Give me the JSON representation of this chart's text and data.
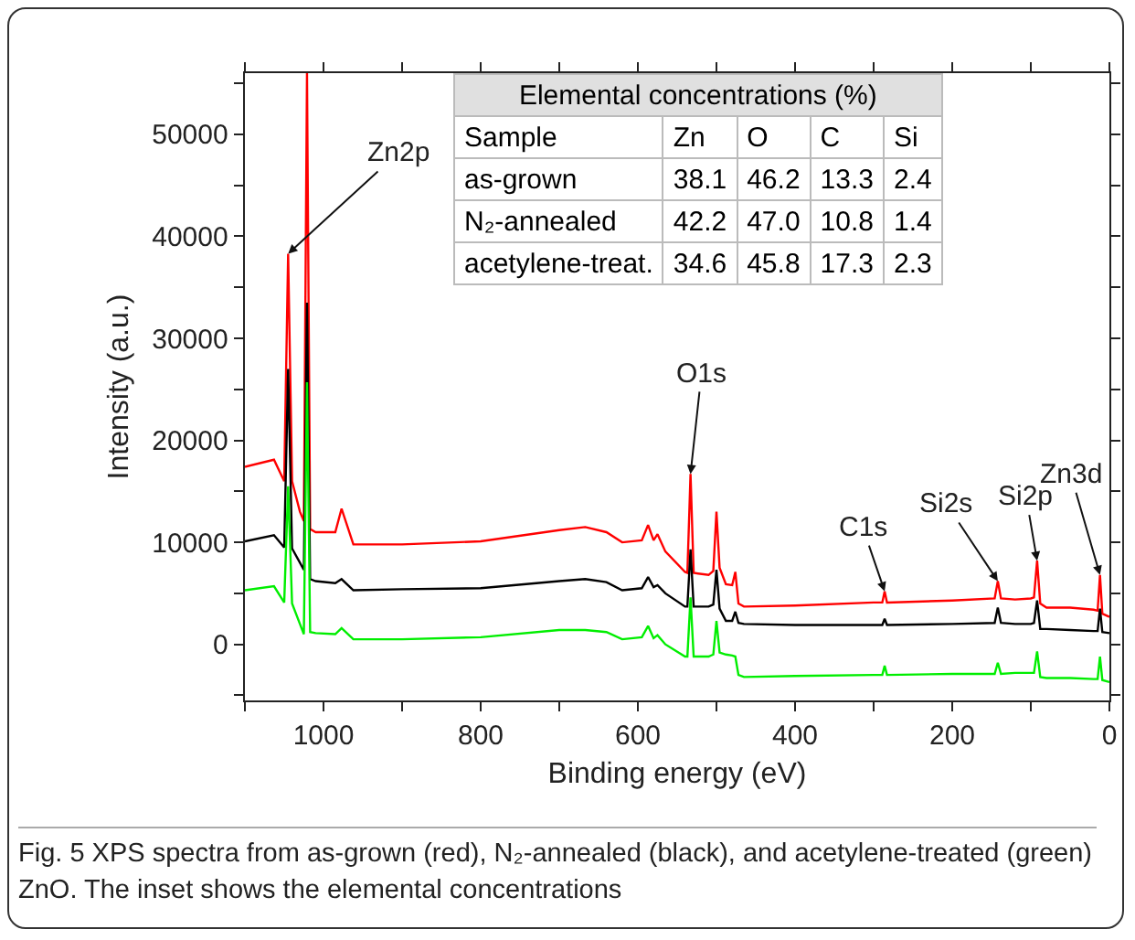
{
  "chart_data": {
    "type": "line",
    "xlabel": "Binding energy (eV)",
    "ylabel": "Intensity (a.u.)",
    "xlim": [
      1100,
      0
    ],
    "ylim": [
      -5500,
      56000
    ],
    "xticks": [
      {
        "value": 1100,
        "label": null
      },
      1000,
      {
        "value": 900,
        "label": null
      },
      800,
      {
        "value": 700,
        "label": null
      },
      600,
      {
        "value": 500,
        "label": null
      },
      400,
      {
        "value": 300,
        "label": null
      },
      200,
      {
        "value": 100,
        "label": null
      },
      0
    ],
    "yticks": [
      {
        "value": -5000,
        "label": null
      },
      0,
      {
        "value": 5000,
        "label": null
      },
      10000,
      {
        "value": 15000,
        "label": null
      },
      20000,
      {
        "value": 25000,
        "label": null
      },
      30000,
      {
        "value": 35000,
        "label": null
      },
      40000,
      {
        "value": 45000,
        "label": null
      },
      50000,
      {
        "value": 55000,
        "label": null
      }
    ],
    "x": [
      1100,
      1063,
      1050,
      1045,
      1040,
      1030,
      1025,
      1021,
      1017,
      1010,
      985,
      977,
      962,
      900,
      800,
      700,
      667,
      640,
      620,
      595,
      587,
      580,
      575,
      565,
      540,
      537,
      533,
      529,
      510,
      504,
      500,
      496,
      488,
      480,
      476,
      472,
      465,
      400,
      300,
      289,
      286,
      283,
      200,
      146,
      142,
      138,
      120,
      100,
      96,
      92,
      88,
      80,
      50,
      20,
      15,
      12,
      9,
      0
    ],
    "series": [
      {
        "color": "#ff0000",
        "values": [
          17400,
          18100,
          16000,
          38300,
          16000,
          13000,
          12100,
          56000,
          11300,
          11000,
          11000,
          13300,
          9800,
          9800,
          10100,
          11200,
          11500,
          11000,
          10000,
          10200,
          11700,
          10200,
          10800,
          9100,
          7100,
          7000,
          16700,
          7000,
          6800,
          7200,
          13000,
          7500,
          5900,
          5800,
          7100,
          4000,
          3700,
          3800,
          4100,
          4100,
          5200,
          4100,
          4300,
          4500,
          6200,
          4500,
          4400,
          4500,
          4600,
          8200,
          4000,
          3600,
          3600,
          3400,
          3300,
          6800,
          3000,
          2700
        ]
      },
      {
        "color": "#000000",
        "values": [
          10100,
          10700,
          9500,
          27000,
          9400,
          8000,
          7300,
          33500,
          6400,
          6200,
          6000,
          6400,
          5300,
          5400,
          5500,
          6200,
          6400,
          6100,
          5300,
          5500,
          6600,
          5600,
          5800,
          5000,
          3700,
          3700,
          9300,
          3700,
          3700,
          3900,
          7300,
          3500,
          2300,
          2300,
          3200,
          2100,
          2000,
          1900,
          1900,
          1900,
          2500,
          1900,
          2000,
          2100,
          3600,
          2100,
          2000,
          2000,
          2100,
          4300,
          1500,
          1500,
          1400,
          1300,
          1300,
          3500,
          1200,
          1100
        ]
      },
      {
        "color": "#00ee00",
        "values": [
          5300,
          5700,
          4100,
          15500,
          4000,
          2000,
          1000,
          25700,
          1200,
          1100,
          1000,
          1600,
          500,
          500,
          700,
          1400,
          1400,
          1200,
          500,
          700,
          1800,
          600,
          900,
          0,
          -1200,
          -1200,
          4600,
          -1200,
          -1200,
          -1000,
          2300,
          -800,
          -1000,
          -1100,
          -1200,
          -3000,
          -3200,
          -3100,
          -3000,
          -3000,
          -2100,
          -3000,
          -2900,
          -2900,
          -1800,
          -2900,
          -2800,
          -2800,
          -2800,
          -700,
          -3200,
          -3300,
          -3300,
          -3400,
          -3400,
          -1200,
          -3500,
          -3700
        ]
      }
    ],
    "annotations": [
      {
        "text": "Zn2p",
        "x": 1045,
        "y": 38300
      },
      {
        "text": "O1s",
        "x": 533,
        "y": 16700
      },
      {
        "text": "C1s",
        "x": 286,
        "y": 5200
      },
      {
        "text": "Si2s",
        "x": 142,
        "y": 6200
      },
      {
        "text": "Si2p",
        "x": 92,
        "y": 8200
      },
      {
        "text": "Zn3d",
        "x": 12,
        "y": 6800
      },
      "Elemental concentrations (%)",
      "Sample",
      "Zn",
      "O",
      "C",
      "Si",
      "as-grown",
      "38.1",
      "46.2",
      "13.3",
      "2.4",
      "N₂-annealed",
      "42.2",
      "47.0",
      "10.8",
      "1.4",
      "acetylene-treat.",
      "34.6",
      "45.8",
      "17.3",
      "2.3",
      "Fig. 5 XPS spectra from as-grown (red), N₂-annealed (black), and acetylene-treated (green) ZnO. The inset shows the elemental concentrations"
    ]
  }
}
